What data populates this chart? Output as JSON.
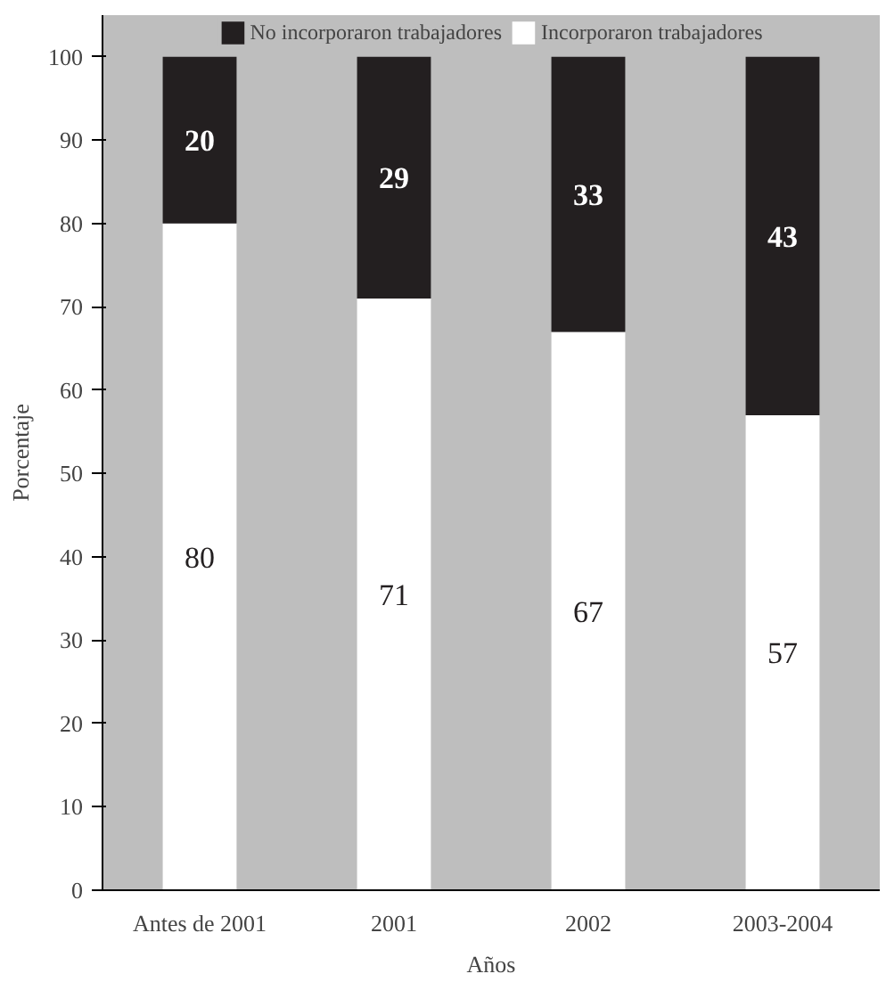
{
  "chart_data": {
    "type": "bar",
    "stacked": true,
    "xlabel": "Años",
    "ylabel": "Porcentaje",
    "categories": [
      "Antes de 2001",
      "2001",
      "2002",
      "2003-2004"
    ],
    "series": [
      {
        "name": "Incorporaron trabajadores",
        "color": "#ffffff",
        "values": [
          80,
          71,
          67,
          57
        ]
      },
      {
        "name": "No incorporaron trabajadores",
        "color": "#231f20",
        "values": [
          20,
          29,
          33,
          43
        ]
      }
    ],
    "ylim": [
      0,
      105
    ],
    "yticks": [
      0,
      10,
      20,
      30,
      40,
      50,
      60,
      70,
      80,
      90,
      100
    ],
    "data_labels": true,
    "legend": "top",
    "grid": false
  }
}
